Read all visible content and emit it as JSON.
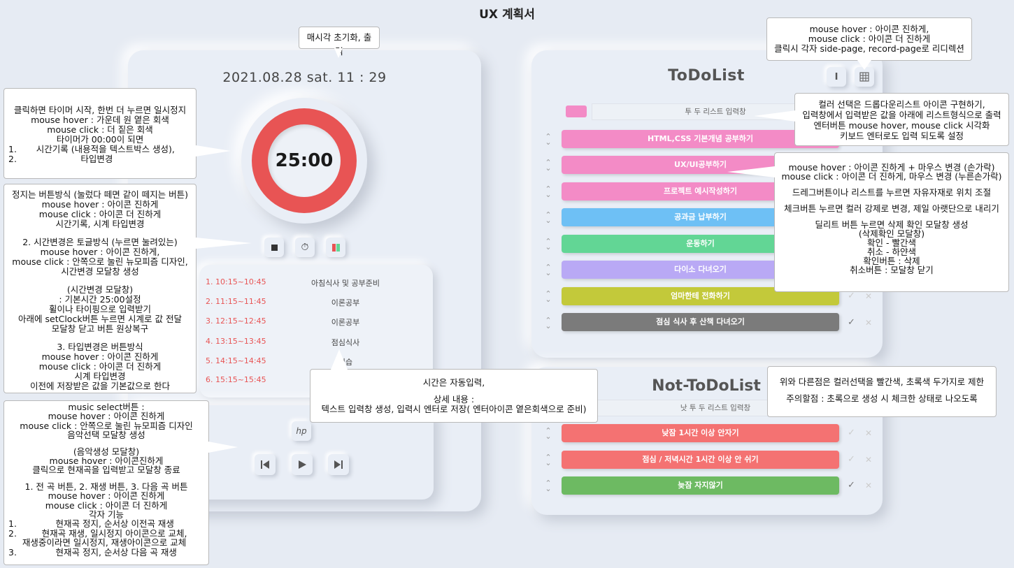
{
  "page_title": "UX 계획서",
  "timer": {
    "datetime": "2021.08.28 sat. 11 : 29",
    "value": "25:00",
    "ring_color": "#e85454",
    "controls": [
      "stop-icon",
      "stopwatch-icon",
      "music-select-icon"
    ]
  },
  "schedule": [
    {
      "time": "1. 10:15~10:45",
      "desc": "아침식사 및 공부준비"
    },
    {
      "time": "2. 11:15~11:45",
      "desc": "이론공부"
    },
    {
      "time": "3. 12:15~12:45",
      "desc": "이론공부"
    },
    {
      "time": "4. 13:15~13:45",
      "desc": "점심식사"
    },
    {
      "time": "5. 14:15~14:45",
      "desc": "실습"
    },
    {
      "time": "6. 15:15~15:45",
      "desc": ""
    }
  ],
  "music": {
    "logo": "hp",
    "controls": [
      "previous-track-icon",
      "play-icon",
      "next-track-icon"
    ]
  },
  "todo": {
    "title": "ToDoList",
    "toggle_label": "I",
    "input_placeholder": "투 두 리스트 입력창",
    "color_swatch": "#f38bc6",
    "items": [
      {
        "label": "HTML,CSS 기본개념 공부하기",
        "color": "#f38bc6",
        "checked": false
      },
      {
        "label": "UX/UI공부하기",
        "color": "#f38bc6",
        "checked": false
      },
      {
        "label": "프로젝트 예시작성하기",
        "color": "#f38bc6",
        "checked": false
      },
      {
        "label": "공과금 납부하기",
        "color": "#6ec0f5",
        "checked": false
      },
      {
        "label": "운동하기",
        "color": "#62d695",
        "checked": false
      },
      {
        "label": "다이소 다녀오기",
        "color": "#b9a9f5",
        "checked": false
      },
      {
        "label": "엄마한테 전화하기",
        "color": "#c3c93a",
        "checked": false
      },
      {
        "label": "점심 식사 후 산책 다녀오기",
        "color": "#7b7b7b",
        "checked": true
      }
    ]
  },
  "notodo": {
    "title": "Not-ToDoList",
    "input_placeholder": "낫 투 두 리스트 입력창",
    "items": [
      {
        "label": "낮잠 1시간 이상 안자기",
        "color": "#f47272",
        "checked": false
      },
      {
        "label": "점심 / 저녁시간 1시간 이상 안 쉬기",
        "color": "#f47272",
        "checked": false
      },
      {
        "label": "늦잠 자지않기",
        "color": "#6dba62",
        "checked": true
      }
    ]
  },
  "callouts": {
    "reset": [
      "매시각 초기화, 출력"
    ],
    "timer": [
      "클릭하면 타이머 시작, 한번 더 누르면 일시정지",
      "mouse hover : 가운데 원 옅은 회색",
      "mouse click : 더 짙은 회색",
      "타이머가 00:00이 되면",
      "1.       시간기록 (내용적을 텍스트박스 생성),",
      "2.                       타입변경"
    ],
    "buttons": [
      "정지는 버튼방식 (눌렀다 떼면 같이 떼지는 버튼)",
      "mouse hover : 아이콘 진하게",
      "mouse click : 아이콘 더 진하게",
      "시간기록, 시계 타입변경",
      "",
      "2. 시간변경은 토글방식 (누르면 눌려있는)",
      "mouse hover : 아이콘 진하게,",
      "mouse click : 안쪽으로 눌린 뉴모피즘 디자인,",
      "시간변경 모달창 생성",
      "",
      "(시간변경 모달창)",
      ": 기본시간 25:00설정",
      "휠이나 타이핑으로 입력받기",
      "아래에 setClock버튼 누르면 시계로 값 전달",
      "모달창 닫고 버튼 원상복구",
      "",
      "3. 타입변경은 버튼방식",
      "mouse hover : 아이콘 진하게",
      "mouse click : 아이콘 더 진하게",
      "시계 타입변경",
      "이전에 저장받은 값을 기본값으로 한다"
    ],
    "music": [
      "music select버튼 :",
      "mouse hover : 아이콘 진하게",
      "mouse click : 안쪽으로 눌린 뉴모피즘 디자인",
      "음악선택 모달창 생성",
      "",
      "(음악생성 모달창)",
      "mouse hover : 아이콘진하게",
      "클릭으로 현재곡을 입력받고 모달창 종료",
      "",
      "1. 전 곡 버튼, 2. 재생 버튼, 3.  다음 곡 버튼",
      "mouse hover : 아이콘 진하게",
      "mouse click : 아이콘 더 진하게",
      "각자 기능",
      "1.              현재곡 정지, 순서상 이전곡 재생",
      "2.         현재곡 재생, 일시정지 아이콘으로 교체,",
      "     재생중이라면 일시정지, 재생아이콘으로 교체",
      "3.              현재곡 정지, 순서상 다음 곡 재생"
    ],
    "schedule": [
      "시간은 자동입력,",
      "",
      "상세 내용 :",
      "텍스트 입력창 생성, 입력시 엔터로 저장( 엔터아이콘 옅은회색으로 준비)"
    ],
    "icons": [
      "mouse hover : 아이콘 진하게,",
      "mouse click : 아이콘 더 진하게",
      "클릭시 각자 side-page, record-page로 리디렉션"
    ],
    "color": [
      "컬러 선택은 드롭다운리스트 아이콘 구현하기,",
      "입력창에서 입력받은 값을 아래에 리스트형식으로 출력",
      "엔터버튼 mouse hover, mouse click 시각화",
      "키보드 엔터로도 입력 되도록 설정"
    ],
    "list": [
      "mouse hover : 아이콘 진하게 + 마우스 변경 (손가락)",
      "mouse click : 아이콘 더 진하게, 마우스 변경 (누른손가락)",
      "",
      "드레그버튼이나 리스트를 누르면 자유자재로 위치 조절",
      "",
      "체크버튼 누르면 컬러 강제로 변경, 제일 아랫단으로 내리기",
      "",
      "딜리트 버튼 누르면 삭제 확인 모달창 생성",
      "(삭제확인 모달창)",
      "확인 - 빨간색",
      "취소 - 하얀색",
      "확인버튼 : 삭제",
      "취소버튼 : 모달창 닫기"
    ],
    "notodo": [
      "위와 다른점은 컬러선택을 빨간색, 초록색 두가지로 제한",
      "",
      "주의할점 : 초록으로 생성 시 체크한 상태로 나오도록"
    ]
  }
}
